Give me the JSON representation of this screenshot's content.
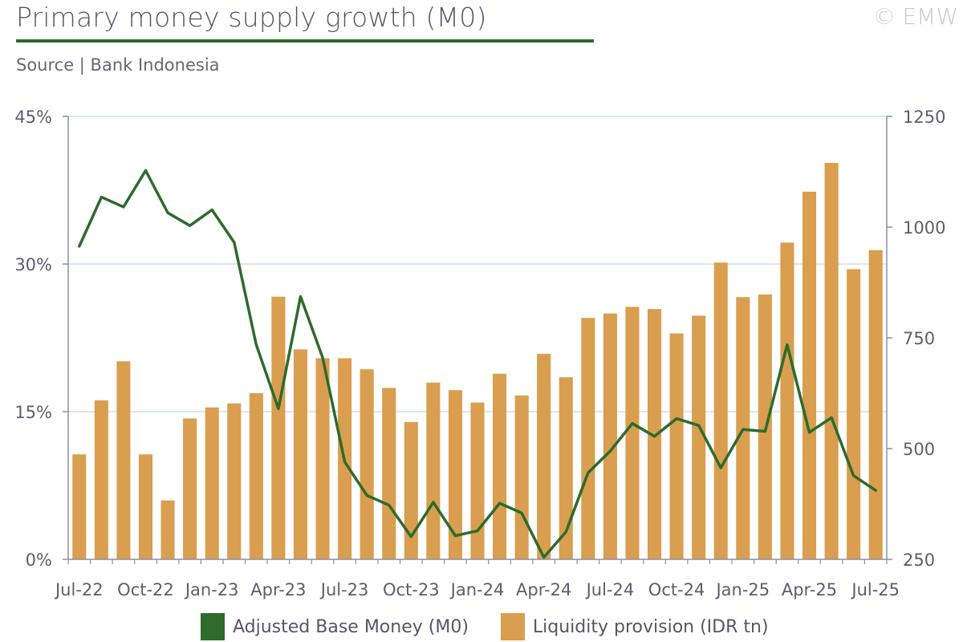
{
  "header": {
    "title": "Primary money supply growth (M0)",
    "copyright": "© EMW",
    "source": "Source | Bank Indonesia"
  },
  "colors": {
    "line": "#2e6b2c",
    "bar": "#d99e50",
    "grid": "#dde6f0",
    "axis": "#8c8fa6"
  },
  "legend": {
    "line_label": "Adjusted Base Money (M0)",
    "bar_label": "Liquidity provision (IDR tn)"
  },
  "chart_data": {
    "type": "bar",
    "title": "Primary money supply growth (M0)",
    "categories": [
      "Jul-22",
      "Aug-22",
      "Sep-22",
      "Oct-22",
      "Nov-22",
      "Dec-22",
      "Jan-23",
      "Feb-23",
      "Mar-23",
      "Apr-23",
      "May-23",
      "Jun-23",
      "Jul-23",
      "Aug-23",
      "Sep-23",
      "Oct-23",
      "Nov-23",
      "Dec-23",
      "Jan-24",
      "Feb-24",
      "Mar-24",
      "Apr-24",
      "May-24",
      "Jun-24",
      "Jul-24",
      "Aug-24",
      "Sep-24",
      "Oct-24",
      "Nov-24",
      "Dec-24",
      "Jan-25",
      "Feb-25",
      "Mar-25",
      "Apr-25",
      "May-25",
      "Jun-25",
      "Jul-25"
    ],
    "x_tick_labels": [
      "Jul-22",
      "Oct-22",
      "Jan-23",
      "Apr-23",
      "Jul-23",
      "Oct-23",
      "Jan-24",
      "Apr-24",
      "Jul-24",
      "Oct-24",
      "Jan-25",
      "Apr-25",
      "Jul-25"
    ],
    "y_left": {
      "ticks": [
        "0%",
        "15%",
        "30%",
        "45%"
      ],
      "range": [
        0,
        45
      ]
    },
    "y_right": {
      "ticks": [
        "250",
        "500",
        "750",
        "1000",
        "1250"
      ],
      "range": [
        250,
        1250
      ]
    },
    "series": [
      {
        "name": "Adjusted Base Money (M0)",
        "type": "line",
        "axis": "left",
        "values": [
          31.8,
          36.8,
          35.8,
          39.5,
          35.2,
          33.9,
          35.5,
          32.2,
          21.8,
          15.3,
          26.7,
          20.5,
          9.9,
          6.5,
          5.5,
          2.3,
          5.8,
          2.4,
          2.9,
          5.7,
          4.7,
          0.2,
          2.8,
          8.8,
          11.0,
          13.8,
          12.5,
          14.3,
          13.6,
          9.3,
          13.2,
          13.0,
          21.8,
          12.9,
          14.4,
          8.5,
          7.0
        ]
      },
      {
        "name": "Liquidity provision (IDR tn)",
        "type": "bar",
        "axis": "right",
        "values": [
          487,
          609,
          697,
          487,
          383,
          568,
          593,
          602,
          625,
          843,
          724,
          704,
          704,
          679,
          637,
          560,
          649,
          632,
          604,
          669,
          620,
          714,
          661,
          795,
          805,
          820,
          815,
          760,
          800,
          920,
          842,
          848,
          965,
          1080,
          1145,
          905,
          948
        ]
      }
    ],
    "grid": true,
    "legend_position": "bottom-center"
  }
}
